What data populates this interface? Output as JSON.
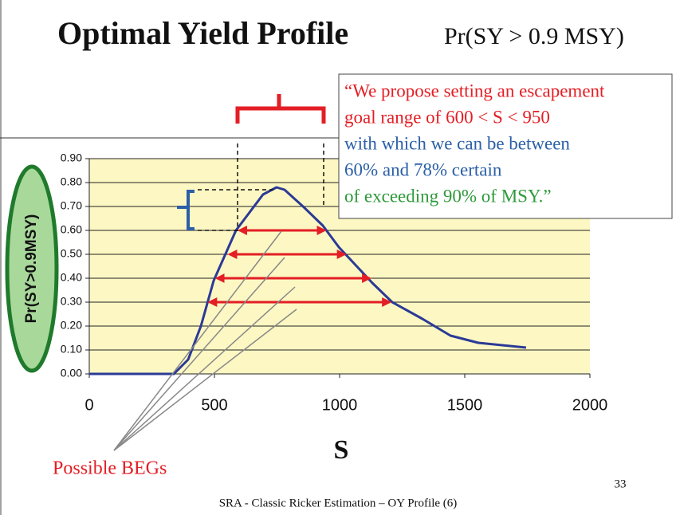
{
  "chart_data": {
    "type": "line",
    "title": "Optimal Yield Profile",
    "subtitle": "Pr(SY > 0.9 MSY)",
    "x_label": "S",
    "y_label": "Pr(SY>0.9MSY)",
    "x": [
      0,
      338,
      395,
      446,
      497,
      586,
      694,
      748,
      780,
      854,
      933,
      997,
      1131,
      1210,
      1331,
      1443,
      1554,
      1745
    ],
    "series": [
      {
        "name": "Pr(SY>0.9MSY)",
        "color": "#2b3a96",
        "values": [
          0,
          0,
          0.06,
          0.2,
          0.39,
          0.6,
          0.75,
          0.78,
          0.77,
          0.7,
          0.62,
          0.53,
          0.38,
          0.3,
          0.23,
          0.16,
          0.13,
          0.11
        ]
      }
    ],
    "xlim": [
      0,
      2000
    ],
    "xticks": [
      0,
      500,
      1000,
      1500,
      2000
    ],
    "ylim": [
      0,
      0.9
    ],
    "yticks": [
      {
        "value": 0,
        "label": "0.00"
      },
      {
        "value": 0.1,
        "label": "0.10"
      },
      {
        "value": 0.2,
        "label": "0.20"
      },
      {
        "value": 0.3,
        "label": "0.30"
      },
      {
        "value": 0.4,
        "label": "0.40"
      },
      {
        "value": 0.5,
        "label": "0.50"
      },
      {
        "value": 0.6,
        "label": "0.60"
      },
      {
        "value": 0.7,
        "label": "0.70"
      },
      {
        "value": 0.8,
        "label": "0.80"
      },
      {
        "value": 0.9,
        "label": "0.90"
      }
    ],
    "grid": true,
    "plot_background": "#fdf7c3",
    "ranges": [
      {
        "y": 0.6,
        "x_start": 600,
        "x_end": 940
      },
      {
        "y": 0.5,
        "x_start": 560,
        "x_end": 1020
      },
      {
        "y": 0.4,
        "x_start": 510,
        "x_end": 1120
      },
      {
        "y": 0.3,
        "x_start": 480,
        "x_end": 1200
      }
    ],
    "range_color": "#e31e24",
    "annotation": "Possible BEGs",
    "quote_lines": [
      {
        "text": "“We propose setting an escapement",
        "color": "#e31e24"
      },
      {
        "text": "goal range of 600 < S < 950",
        "color": "#e31e24"
      },
      {
        "text": "with which we can be between",
        "color": "#2b5fa8"
      },
      {
        "text": "60% and 78% certain",
        "color": "#2b5fa8"
      },
      {
        "text": "of exceeding 90% of MSY.”",
        "color": "#2e9a3a"
      }
    ],
    "page_number": "33",
    "footer": "SRA - Classic Ricker Estimation – OY Profile (6)"
  }
}
